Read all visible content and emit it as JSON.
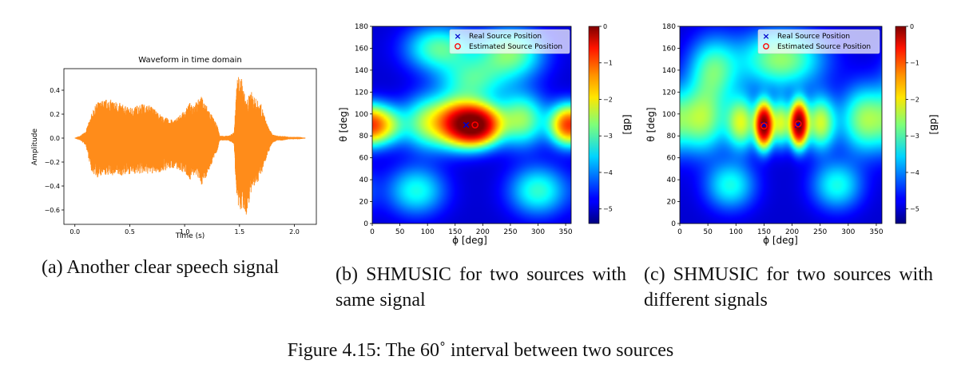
{
  "figure_caption": "Figure 4.15: The 60˚ interval between two sources",
  "colors": {
    "waveform": "#ff8c1a",
    "real_marker": "#0000cc",
    "estimated_marker": "#ff0000"
  },
  "chart_data": [
    {
      "id": "a",
      "type": "line",
      "title": "Waveform in time domain",
      "xlabel": "Time (s)",
      "ylabel": "Amplitude",
      "xlim": [
        -0.1,
        2.2
      ],
      "ylim": [
        -0.72,
        0.58
      ],
      "xticks": [
        0.0,
        0.5,
        1.0,
        1.5,
        2.0
      ],
      "xtick_labels": [
        "0.0",
        "0.5",
        "1.0",
        "1.5",
        "2.0"
      ],
      "yticks": [
        0.4,
        0.2,
        0.0,
        -0.2,
        -0.4,
        -0.6
      ],
      "ytick_labels": [
        "0.4",
        "0.2",
        "0.0",
        "−0.2",
        "−0.4",
        "−0.6"
      ],
      "envelope": {
        "t": [
          0.0,
          0.02,
          0.05,
          0.1,
          0.15,
          0.2,
          0.3,
          0.4,
          0.5,
          0.6,
          0.7,
          0.8,
          0.9,
          1.0,
          1.05,
          1.1,
          1.15,
          1.2,
          1.3,
          1.32,
          1.4,
          1.45,
          1.48,
          1.52,
          1.56,
          1.6,
          1.65,
          1.7,
          1.75,
          1.8,
          1.85,
          1.9,
          1.95,
          2.0,
          2.05,
          2.1
        ],
        "upper": [
          0.0,
          0.01,
          0.02,
          0.06,
          0.2,
          0.3,
          0.33,
          0.3,
          0.25,
          0.29,
          0.27,
          0.18,
          0.15,
          0.23,
          0.3,
          0.3,
          0.35,
          0.28,
          0.1,
          0.02,
          0.02,
          0.05,
          0.52,
          0.5,
          0.3,
          0.4,
          0.33,
          0.28,
          0.12,
          0.03,
          0.02,
          0.02,
          0.01,
          0.01,
          0.01,
          0.0
        ],
        "lower": [
          0.0,
          -0.01,
          -0.02,
          -0.06,
          -0.28,
          -0.33,
          -0.31,
          -0.32,
          -0.3,
          -0.3,
          -0.3,
          -0.28,
          -0.25,
          -0.29,
          -0.35,
          -0.3,
          -0.4,
          -0.32,
          -0.1,
          -0.02,
          -0.02,
          -0.05,
          -0.62,
          -0.6,
          -0.66,
          -0.48,
          -0.4,
          -0.3,
          -0.15,
          -0.04,
          -0.02,
          -0.02,
          -0.01,
          -0.01,
          -0.01,
          0.0
        ]
      },
      "caption": "(a) Another clear speech signal"
    },
    {
      "id": "b",
      "type": "heatmap",
      "xlabel": "ϕ [deg]",
      "ylabel": "θ [deg]",
      "xlim": [
        0,
        360
      ],
      "ylim": [
        0,
        180
      ],
      "xticks": [
        0,
        50,
        100,
        150,
        200,
        250,
        300,
        350
      ],
      "yticks": [
        0,
        20,
        40,
        60,
        80,
        100,
        120,
        140,
        160,
        180
      ],
      "colorbar": {
        "label": "[dB]",
        "range": [
          -5.4,
          0
        ],
        "ticks": [
          0,
          -1,
          -2,
          -3,
          -4,
          -5
        ],
        "tick_labels": [
          "0",
          "−1",
          "−2",
          "−3",
          "−4",
          "−5"
        ]
      },
      "legend": {
        "position": "top-right",
        "entries": [
          "Real Source Position",
          "Estimated Source Position"
        ]
      },
      "real_sources": [
        [
          170,
          90
        ]
      ],
      "estimated_sources": [
        [
          186,
          90
        ]
      ],
      "peaks": [
        {
          "phi": 188,
          "theta": 90,
          "amp": 1.0,
          "sphi": 28,
          "stheta": 12
        },
        {
          "phi": 150,
          "theta": 92,
          "amp": 0.45,
          "sphi": 26,
          "stheta": 14
        },
        {
          "phi": 100,
          "theta": 92,
          "amp": 0.3,
          "sphi": 30,
          "stheta": 16
        },
        {
          "phi": 20,
          "theta": 90,
          "amp": 0.35,
          "sphi": 25,
          "stheta": 12
        },
        {
          "phi": 350,
          "theta": 90,
          "amp": 0.45,
          "sphi": 20,
          "stheta": 12
        },
        {
          "phi": 270,
          "theta": 95,
          "amp": 0.3,
          "sphi": 30,
          "stheta": 16
        },
        {
          "phi": 120,
          "theta": 160,
          "amp": 0.25,
          "sphi": 40,
          "stheta": 14
        },
        {
          "phi": 250,
          "theta": 155,
          "amp": 0.28,
          "sphi": 40,
          "stheta": 16
        },
        {
          "phi": 80,
          "theta": 30,
          "amp": 0.2,
          "sphi": 35,
          "stheta": 15
        },
        {
          "phi": 300,
          "theta": 30,
          "amp": 0.22,
          "sphi": 35,
          "stheta": 15
        },
        {
          "phi": 180,
          "theta": 130,
          "amp": 0.22,
          "sphi": 40,
          "stheta": 15
        }
      ],
      "caption": "(b) SHMUSIC for two sources with same signal"
    },
    {
      "id": "c",
      "type": "heatmap",
      "xlabel": "ϕ [deg]",
      "ylabel": "θ [deg]",
      "xlim": [
        0,
        360
      ],
      "ylim": [
        0,
        180
      ],
      "xticks": [
        0,
        50,
        100,
        150,
        200,
        250,
        300,
        350
      ],
      "yticks": [
        0,
        20,
        40,
        60,
        80,
        100,
        120,
        140,
        160,
        180
      ],
      "colorbar": {
        "label": "[dB]",
        "range": [
          -5.4,
          0
        ],
        "ticks": [
          0,
          -1,
          -2,
          -3,
          -4,
          -5
        ],
        "tick_labels": [
          "0",
          "−1",
          "−2",
          "−3",
          "−4",
          "−5"
        ]
      },
      "legend": {
        "position": "top-right",
        "entries": [
          "Real Source Position",
          "Estimated Source Position"
        ]
      },
      "real_sources": [
        [
          150,
          90
        ],
        [
          210,
          90
        ]
      ],
      "estimated_sources": [
        [
          150,
          89
        ],
        [
          211,
          91
        ]
      ],
      "peaks": [
        {
          "phi": 150,
          "theta": 90,
          "amp": 1.0,
          "sphi": 10,
          "stheta": 13
        },
        {
          "phi": 212,
          "theta": 91,
          "amp": 1.0,
          "sphi": 10,
          "stheta": 13
        },
        {
          "phi": 180,
          "theta": 92,
          "amp": 0.35,
          "sphi": 12,
          "stheta": 14
        },
        {
          "phi": 110,
          "theta": 92,
          "amp": 0.35,
          "sphi": 18,
          "stheta": 16
        },
        {
          "phi": 250,
          "theta": 92,
          "amp": 0.35,
          "sphi": 18,
          "stheta": 16
        },
        {
          "phi": 40,
          "theta": 95,
          "amp": 0.3,
          "sphi": 30,
          "stheta": 20
        },
        {
          "phi": 330,
          "theta": 95,
          "amp": 0.3,
          "sphi": 30,
          "stheta": 20
        },
        {
          "phi": 180,
          "theta": 150,
          "amp": 0.3,
          "sphi": 50,
          "stheta": 18
        },
        {
          "phi": 60,
          "theta": 140,
          "amp": 0.25,
          "sphi": 30,
          "stheta": 20
        },
        {
          "phi": 90,
          "theta": 35,
          "amp": 0.2,
          "sphi": 30,
          "stheta": 15
        },
        {
          "phi": 280,
          "theta": 35,
          "amp": 0.2,
          "sphi": 30,
          "stheta": 15
        }
      ],
      "caption": "(c) SHMUSIC for two sources with different signals"
    }
  ]
}
